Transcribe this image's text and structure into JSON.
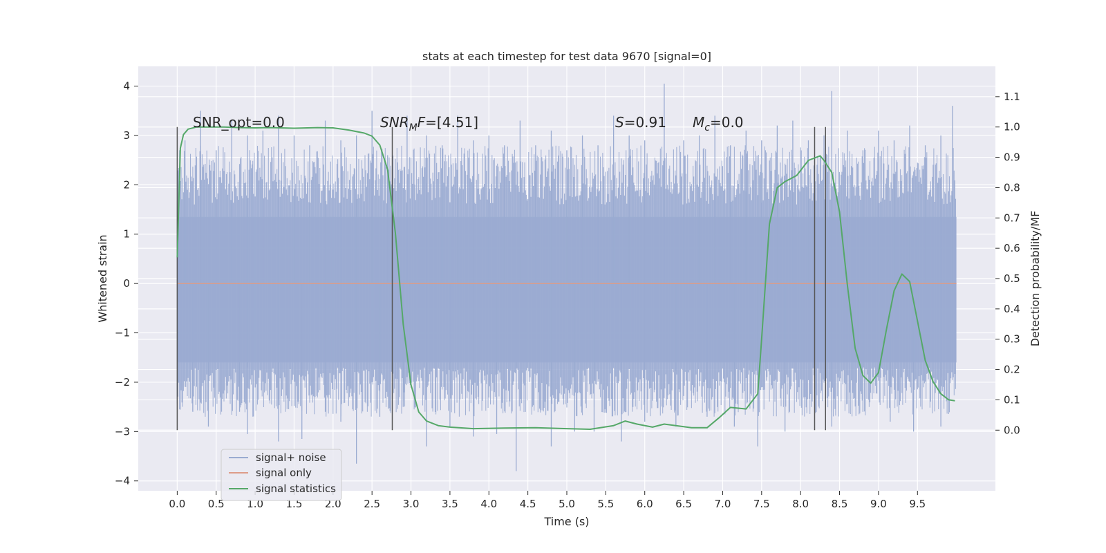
{
  "chart_data": {
    "type": "line",
    "title": "stats at each timestep for test data 9670 [signal=0]",
    "xlabel": "Time (s)",
    "ylabel": "Whitened strain",
    "y2label": "Detection probability/MF",
    "xlim": [
      -0.5,
      10.5
    ],
    "ylim": [
      -4.2,
      4.4
    ],
    "y2lim": [
      -0.2,
      1.2
    ],
    "xticks": [
      0.0,
      0.5,
      1.0,
      1.5,
      2.0,
      2.5,
      3.0,
      3.5,
      4.0,
      4.5,
      5.0,
      5.5,
      6.0,
      6.5,
      7.0,
      7.5,
      8.0,
      8.5,
      9.0,
      9.5
    ],
    "xtick_labels": [
      "0.0",
      "0.5",
      "1.0",
      "1.5",
      "2.0",
      "2.5",
      "3.0",
      "3.5",
      "4.0",
      "4.5",
      "5.0",
      "5.5",
      "6.0",
      "6.5",
      "7.0",
      "7.5",
      "8.0",
      "8.5",
      "9.0",
      "9.5"
    ],
    "yticks": [
      -4,
      -3,
      -2,
      -1,
      0,
      1,
      2,
      3,
      4
    ],
    "ytick_labels": [
      "−4",
      "−3",
      "−2",
      "−1",
      "0",
      "1",
      "2",
      "3",
      "4"
    ],
    "y2ticks": [
      0.0,
      0.1,
      0.2,
      0.3,
      0.4,
      0.5,
      0.6,
      0.7,
      0.8,
      0.9,
      1.0,
      1.1
    ],
    "y2tick_labels": [
      "0.0",
      "0.1",
      "0.2",
      "0.3",
      "0.4",
      "0.5",
      "0.6",
      "0.7",
      "0.8",
      "0.9",
      "1.0",
      "1.1"
    ],
    "grid": true,
    "legend_position": "lower-left",
    "colors": {
      "background": "#eaeaf2",
      "grid": "#ffffff",
      "noise": "#9aabd1",
      "signal_only": "#dd9c88",
      "statistics": "#55a868",
      "markers": "#555555"
    },
    "noise_series": {
      "name": "signal+ noise",
      "t_start": 0.0,
      "t_end": 10.0,
      "band_low": -1.6,
      "band_high": 1.35,
      "spikes": [
        [
          0.1,
          2.9
        ],
        [
          0.3,
          3.5
        ],
        [
          0.5,
          2.7
        ],
        [
          0.7,
          3.3
        ],
        [
          0.9,
          3.0
        ],
        [
          1.1,
          3.1
        ],
        [
          1.3,
          3.4
        ],
        [
          1.5,
          3.0
        ],
        [
          1.7,
          2.8
        ],
        [
          1.9,
          3.3
        ],
        [
          2.1,
          2.9
        ],
        [
          2.3,
          3.0
        ],
        [
          2.5,
          3.5
        ],
        [
          2.7,
          2.6
        ],
        [
          2.95,
          3.4
        ],
        [
          3.2,
          3.0
        ],
        [
          3.4,
          2.8
        ],
        [
          3.6,
          3.4
        ],
        [
          3.8,
          2.9
        ],
        [
          4.0,
          3.0
        ],
        [
          4.2,
          2.8
        ],
        [
          4.4,
          3.3
        ],
        [
          4.6,
          2.8
        ],
        [
          4.8,
          3.1
        ],
        [
          5.0,
          2.7
        ],
        [
          5.2,
          3.0
        ],
        [
          5.4,
          2.8
        ],
        [
          5.6,
          3.4
        ],
        [
          5.8,
          3.0
        ],
        [
          6.0,
          2.9
        ],
        [
          6.25,
          4.05
        ],
        [
          6.5,
          2.9
        ],
        [
          6.7,
          3.0
        ],
        [
          6.9,
          3.4
        ],
        [
          7.1,
          2.8
        ],
        [
          7.3,
          3.1
        ],
        [
          7.5,
          2.9
        ],
        [
          7.7,
          3.2
        ],
        [
          7.9,
          3.3
        ],
        [
          8.1,
          2.9
        ],
        [
          8.3,
          3.0
        ],
        [
          8.4,
          3.9
        ],
        [
          8.6,
          3.1
        ],
        [
          8.8,
          2.7
        ],
        [
          9.0,
          3.1
        ],
        [
          9.2,
          2.9
        ],
        [
          9.4,
          3.2
        ],
        [
          9.6,
          2.8
        ],
        [
          9.8,
          3.0
        ],
        [
          9.95,
          3.6
        ]
      ],
      "dips": [
        [
          0.2,
          -2.6
        ],
        [
          0.4,
          -2.9
        ],
        [
          0.8,
          -2.6
        ],
        [
          0.9,
          -3.05
        ],
        [
          1.3,
          -3.2
        ],
        [
          1.6,
          -3.15
        ],
        [
          1.9,
          -2.6
        ],
        [
          2.1,
          -2.8
        ],
        [
          2.3,
          -3.65
        ],
        [
          2.6,
          -2.7
        ],
        [
          2.9,
          -2.5
        ],
        [
          3.2,
          -3.3
        ],
        [
          3.5,
          -2.9
        ],
        [
          3.8,
          -3.1
        ],
        [
          4.1,
          -3.05
        ],
        [
          4.35,
          -3.8
        ],
        [
          4.8,
          -3.3
        ],
        [
          5.1,
          -3.0
        ],
        [
          5.35,
          -3.0
        ],
        [
          5.7,
          -3.2
        ],
        [
          6.0,
          -2.8
        ],
        [
          6.4,
          -2.9
        ],
        [
          6.8,
          -2.7
        ],
        [
          7.15,
          -2.9
        ],
        [
          7.45,
          -3.3
        ],
        [
          7.8,
          -3.0
        ],
        [
          8.2,
          -2.6
        ],
        [
          8.4,
          -2.9
        ],
        [
          8.8,
          -2.6
        ],
        [
          9.15,
          -2.8
        ],
        [
          9.45,
          -3.0
        ],
        [
          9.8,
          -2.9
        ]
      ]
    },
    "signal_only_series": {
      "name": "signal only",
      "x": [
        0.0,
        10.0
      ],
      "y": [
        0.0,
        0.0
      ]
    },
    "statistics_series": {
      "name": "signal statistics",
      "x": [
        0.0,
        0.04,
        0.08,
        0.14,
        0.25,
        0.4,
        0.6,
        0.8,
        1.0,
        1.2,
        1.5,
        1.8,
        2.0,
        2.2,
        2.4,
        2.5,
        2.6,
        2.7,
        2.8,
        2.9,
        3.0,
        3.1,
        3.2,
        3.35,
        3.5,
        3.8,
        4.2,
        4.6,
        5.0,
        5.3,
        5.6,
        5.75,
        5.9,
        6.1,
        6.25,
        6.4,
        6.6,
        6.8,
        6.95,
        7.1,
        7.3,
        7.45,
        7.5,
        7.6,
        7.7,
        7.8,
        7.95,
        8.1,
        8.25,
        8.3,
        8.4,
        8.5,
        8.6,
        8.7,
        8.8,
        8.9,
        9.0,
        9.1,
        9.2,
        9.3,
        9.4,
        9.5,
        9.6,
        9.7,
        9.8,
        9.9,
        9.98
      ],
      "y": [
        0.57,
        0.93,
        0.975,
        0.993,
        1.0,
        1.0,
        1.0,
        0.998,
        0.997,
        0.998,
        0.996,
        0.998,
        0.997,
        0.99,
        0.98,
        0.97,
        0.94,
        0.86,
        0.65,
        0.35,
        0.15,
        0.06,
        0.03,
        0.015,
        0.01,
        0.005,
        0.007,
        0.008,
        0.005,
        0.003,
        0.015,
        0.03,
        0.02,
        0.01,
        0.02,
        0.015,
        0.008,
        0.008,
        0.04,
        0.075,
        0.07,
        0.12,
        0.3,
        0.68,
        0.8,
        0.82,
        0.84,
        0.89,
        0.905,
        0.89,
        0.85,
        0.72,
        0.48,
        0.27,
        0.18,
        0.155,
        0.19,
        0.33,
        0.46,
        0.515,
        0.49,
        0.36,
        0.23,
        0.16,
        0.12,
        0.1,
        0.097
      ]
    },
    "vertical_markers": [
      0.0,
      2.76,
      8.18,
      8.32
    ],
    "marker_range": [
      0.0,
      1.0
    ],
    "annotations": {
      "snr_opt": "SNR_opt=0.0",
      "snr_mf_sym": "SNR",
      "snr_mf_sub": "M",
      "snr_mf_f": "F",
      "snr_mf_val": "=[4.51]",
      "s_sym": "S",
      "s_val": "=0.91",
      "mc_sym": "M",
      "mc_sub": "c",
      "mc_val": "=0.0"
    },
    "legend": [
      "signal+ noise",
      "signal only",
      "signal statistics"
    ]
  }
}
